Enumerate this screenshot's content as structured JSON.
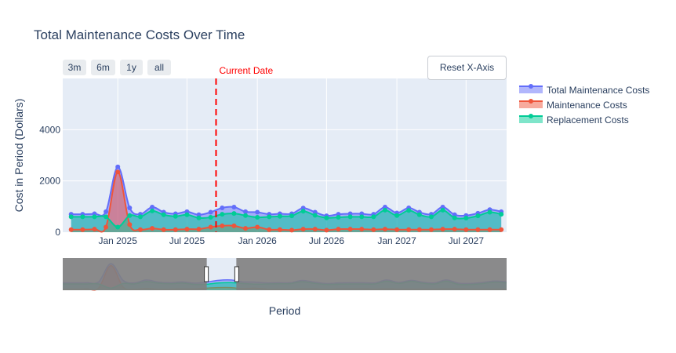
{
  "chart_data": {
    "type": "line",
    "title": "Total Maintenance Costs Over Time",
    "xlabel": "Period",
    "ylabel": "Cost in Period (Dollars)",
    "ylim": [
      0,
      6000
    ],
    "yticks": [
      "0",
      "2000",
      "4000"
    ],
    "xticks": [
      "Jan 2025",
      "Jul 2025",
      "Jan 2026",
      "Jul 2026",
      "Jan 2027",
      "Jul 2027"
    ],
    "annotation": "Current Date",
    "current_date": "2025-09-15",
    "x": [
      "2024-09-01",
      "2024-10-01",
      "2024-11-01",
      "2024-12-01",
      "2025-01-01",
      "2025-02-01",
      "2025-03-01",
      "2025-04-01",
      "2025-05-01",
      "2025-06-01",
      "2025-07-01",
      "2025-08-01",
      "2025-09-01",
      "2025-10-01",
      "2025-11-01",
      "2025-12-01",
      "2026-01-01",
      "2026-02-01",
      "2026-03-01",
      "2026-04-01",
      "2026-05-01",
      "2026-06-01",
      "2026-07-01",
      "2026-08-01",
      "2026-09-01",
      "2026-10-01",
      "2026-11-01",
      "2026-12-01",
      "2027-01-01",
      "2027-02-01",
      "2027-03-01",
      "2027-04-01",
      "2027-05-01",
      "2027-06-01",
      "2027-07-01",
      "2027-08-01",
      "2027-09-01",
      "2027-10-01"
    ],
    "series": [
      {
        "name": "Total Maintenance Costs",
        "color": "#636efa",
        "values": [
          700,
          700,
          720,
          800,
          2550,
          950,
          700,
          980,
          780,
          720,
          800,
          680,
          780,
          950,
          980,
          800,
          780,
          700,
          720,
          720,
          940,
          780,
          640,
          700,
          720,
          720,
          700,
          980,
          750,
          950,
          780,
          700,
          980,
          680,
          650,
          740,
          880,
          800
        ]
      },
      {
        "name": "Maintenance Costs",
        "color": "#ef553b",
        "values": [
          100,
          100,
          120,
          200,
          2350,
          300,
          100,
          150,
          100,
          100,
          120,
          120,
          200,
          250,
          250,
          150,
          200,
          100,
          100,
          80,
          120,
          120,
          80,
          120,
          120,
          120,
          100,
          120,
          100,
          100,
          100,
          100,
          120,
          120,
          100,
          100,
          100,
          100
        ]
      },
      {
        "name": "Replacement Costs",
        "color": "#00cc96",
        "values": [
          600,
          600,
          600,
          600,
          200,
          650,
          600,
          830,
          680,
          620,
          680,
          560,
          580,
          700,
          730,
          650,
          580,
          600,
          620,
          640,
          820,
          660,
          560,
          580,
          600,
          600,
          600,
          860,
          650,
          850,
          680,
          600,
          860,
          560,
          550,
          640,
          780,
          700
        ]
      }
    ],
    "range_buttons": [
      "3m",
      "6m",
      "1y",
      "all"
    ],
    "reset_label": "Reset X-Axis",
    "grid": true,
    "legend": "top-right"
  }
}
